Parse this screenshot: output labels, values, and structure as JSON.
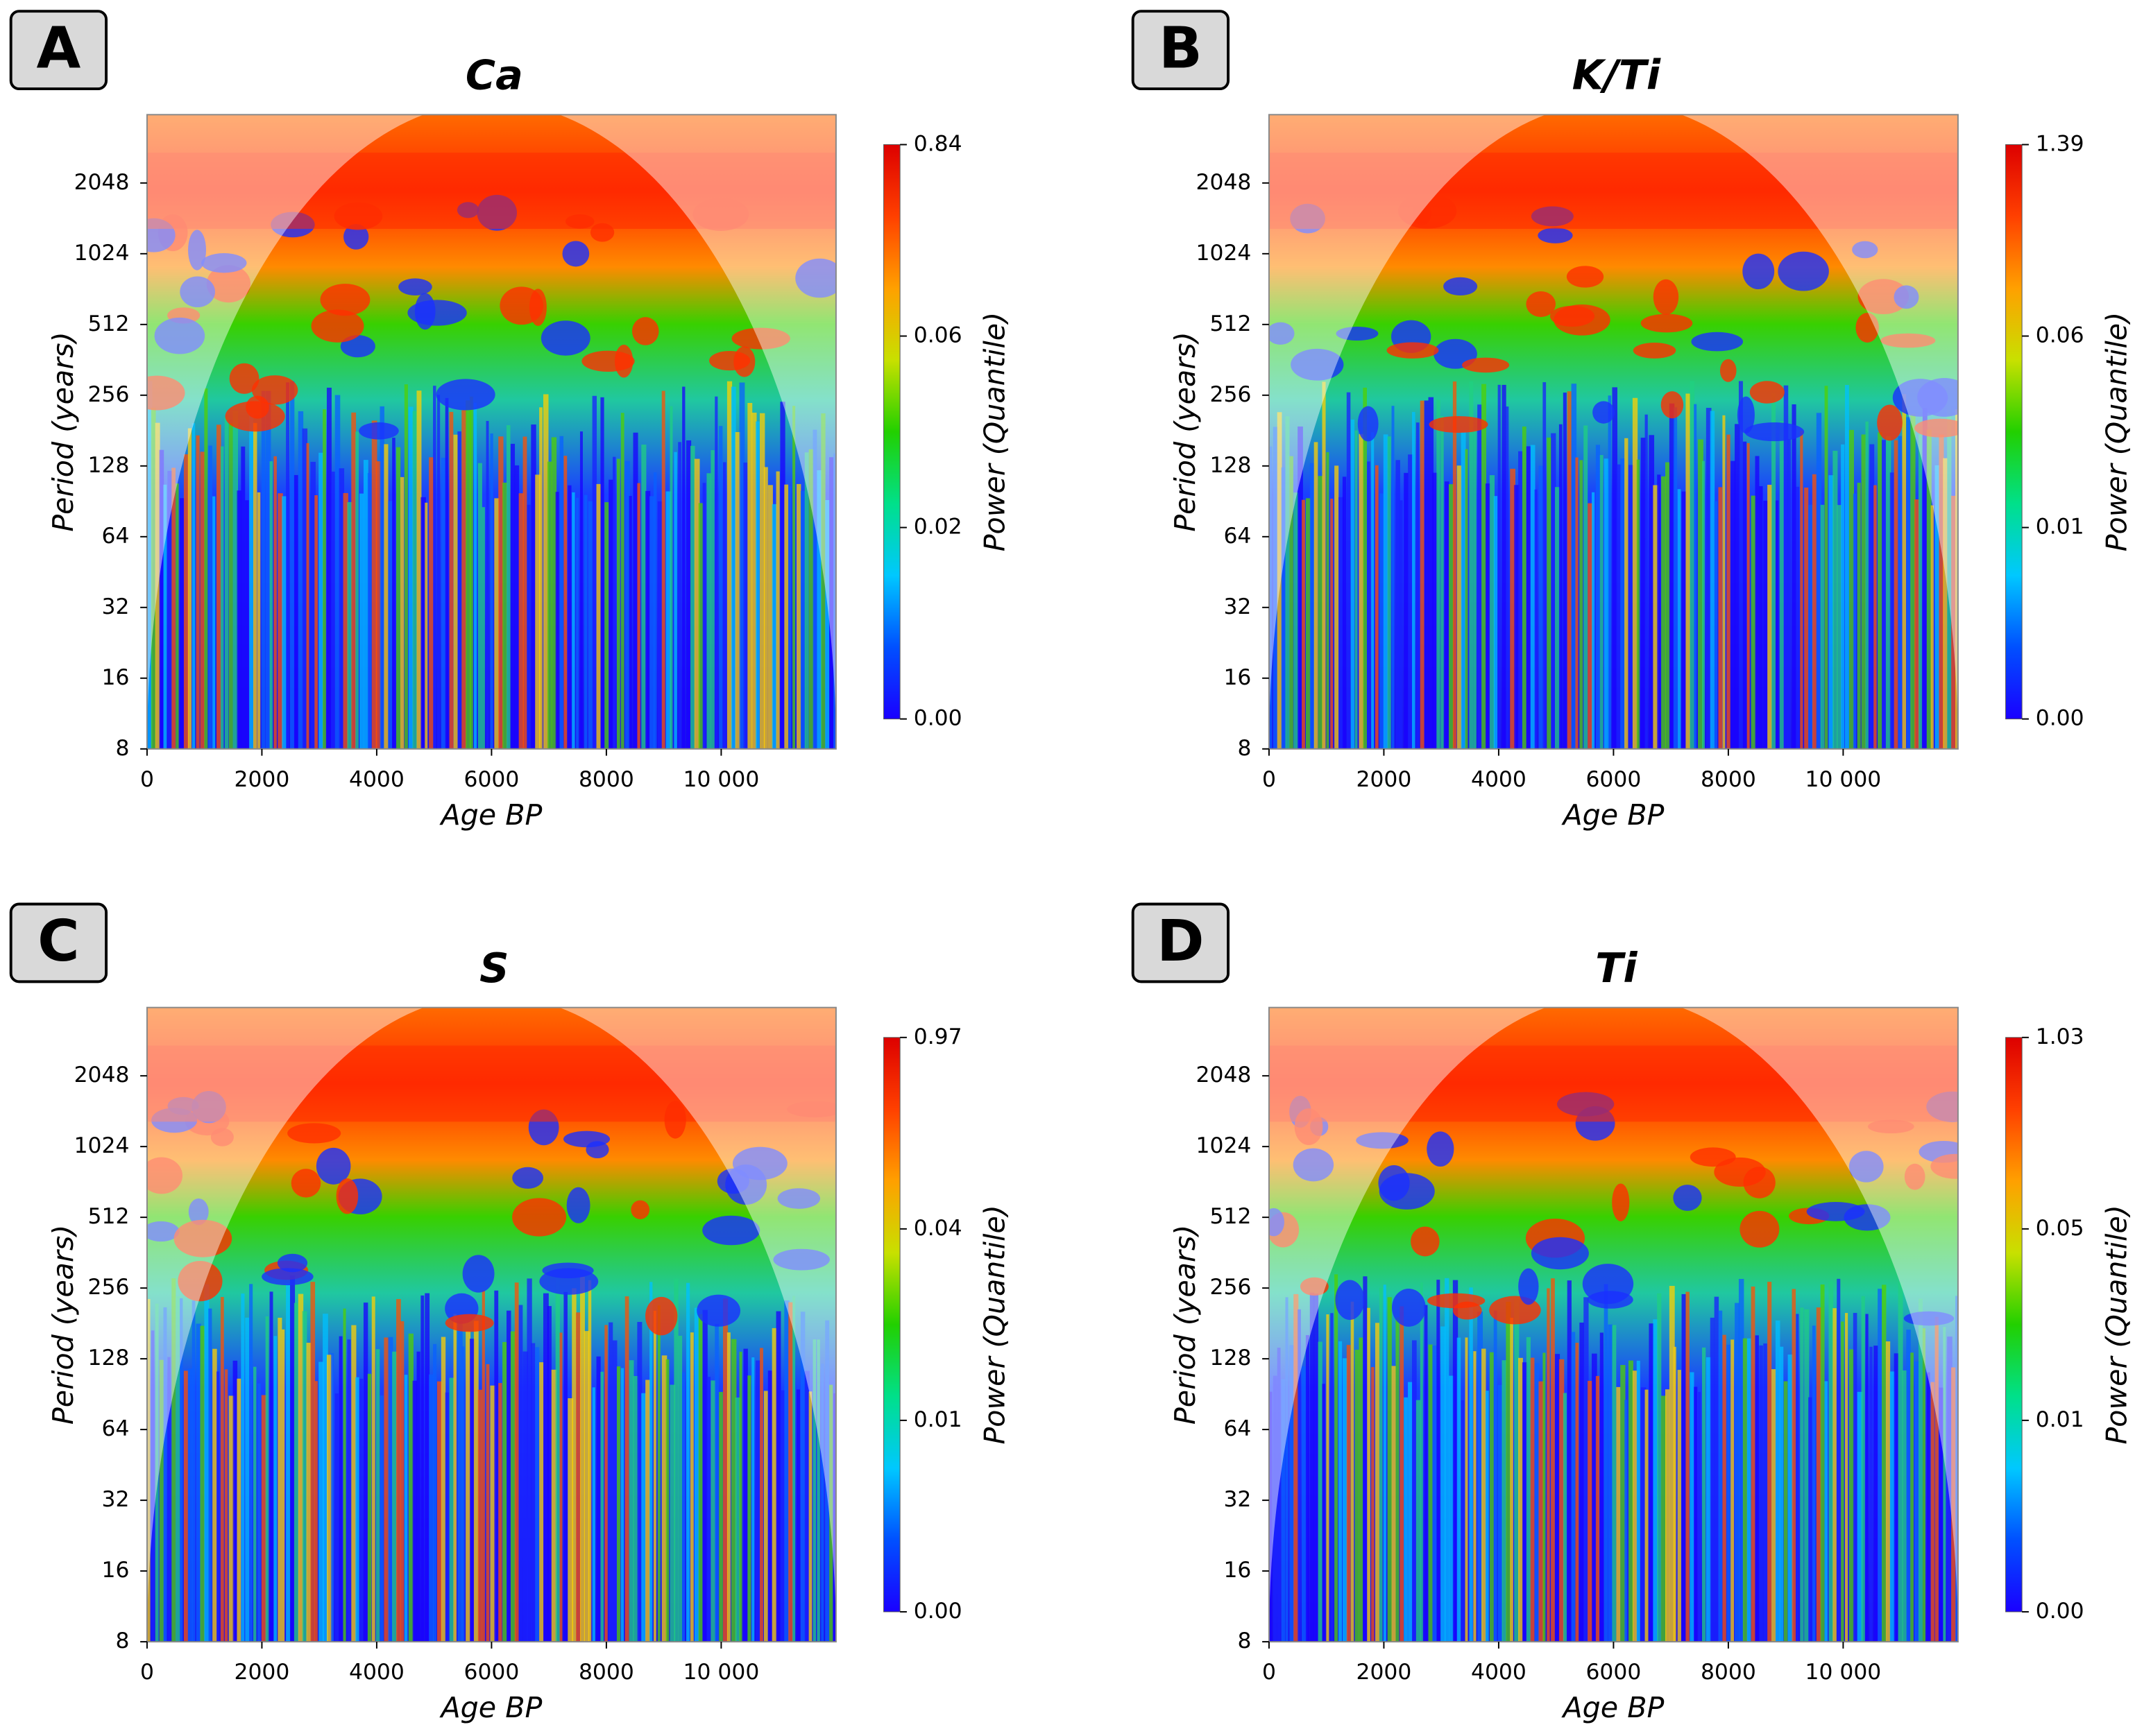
{
  "chart_data": [
    {
      "type": "heatmap",
      "panel_label": "A",
      "title": "Ca",
      "xlabel": "Age BP",
      "ylabel": "Period (years)",
      "colorbar_label": "Power (Quantile)",
      "xlim": [
        0,
        12000
      ],
      "xticks": [
        0,
        2000,
        4000,
        6000,
        8000,
        {
          "value": 10000,
          "label": "10 000"
        }
      ],
      "ylim": [
        8,
        4000
      ],
      "ylog": true,
      "yticks": [
        8,
        16,
        32,
        64,
        128,
        256,
        512,
        1024,
        2048
      ],
      "colorbar_scale": "quantile",
      "colorbar_ticks": [
        {
          "value": 0,
          "label": "0.00"
        },
        {
          "value": 0.02,
          "label": "0.02"
        },
        {
          "value": 0.06,
          "label": "0.06"
        },
        {
          "value": 0.84,
          "label": "0.84"
        }
      ],
      "colormap": [
        "#1a00ff",
        "#0050ff",
        "#00c8ff",
        "#00e08a",
        "#22d000",
        "#c8e000",
        "#ffa000",
        "#ff4000",
        "#dd0000"
      ]
    },
    {
      "type": "heatmap",
      "panel_label": "B",
      "title": "K/Ti",
      "xlabel": "Age BP",
      "ylabel": "Period (years)",
      "colorbar_label": "Power (Quantile)",
      "xlim": [
        0,
        12000
      ],
      "xticks": [
        0,
        2000,
        4000,
        6000,
        8000,
        {
          "value": 10000,
          "label": "10 000"
        }
      ],
      "ylim": [
        8,
        4000
      ],
      "ylog": true,
      "yticks": [
        8,
        16,
        32,
        64,
        128,
        256,
        512,
        1024,
        2048
      ],
      "colorbar_scale": "quantile",
      "colorbar_ticks": [
        {
          "value": 0,
          "label": "0.00"
        },
        {
          "value": 0.01,
          "label": "0.01"
        },
        {
          "value": 0.06,
          "label": "0.06"
        },
        {
          "value": 1.39,
          "label": "1.39"
        }
      ],
      "colormap": [
        "#1a00ff",
        "#0050ff",
        "#00c8ff",
        "#00e08a",
        "#22d000",
        "#c8e000",
        "#ffa000",
        "#ff4000",
        "#dd0000"
      ]
    },
    {
      "type": "heatmap",
      "panel_label": "C",
      "title": "S",
      "xlabel": "Age BP",
      "ylabel": "Period (years)",
      "colorbar_label": "Power (Quantile)",
      "xlim": [
        0,
        12000
      ],
      "xticks": [
        0,
        2000,
        4000,
        6000,
        8000,
        {
          "value": 10000,
          "label": "10 000"
        }
      ],
      "ylim": [
        8,
        4000
      ],
      "ylog": true,
      "yticks": [
        8,
        16,
        32,
        64,
        128,
        256,
        512,
        1024,
        2048
      ],
      "colorbar_scale": "quantile",
      "colorbar_ticks": [
        {
          "value": 0,
          "label": "0.00"
        },
        {
          "value": 0.01,
          "label": "0.01"
        },
        {
          "value": 0.04,
          "label": "0.04"
        },
        {
          "value": 0.97,
          "label": "0.97"
        }
      ],
      "colormap": [
        "#1a00ff",
        "#0050ff",
        "#00c8ff",
        "#00e08a",
        "#22d000",
        "#c8e000",
        "#ffa000",
        "#ff4000",
        "#dd0000"
      ]
    },
    {
      "type": "heatmap",
      "panel_label": "D",
      "title": "Ti",
      "xlabel": "Age BP",
      "ylabel": "Period (years)",
      "colorbar_label": "Power (Quantile)",
      "xlim": [
        0,
        12000
      ],
      "xticks": [
        0,
        2000,
        4000,
        6000,
        8000,
        {
          "value": 10000,
          "label": "10 000"
        }
      ],
      "ylim": [
        8,
        4000
      ],
      "ylog": true,
      "yticks": [
        8,
        16,
        32,
        64,
        128,
        256,
        512,
        1024,
        2048
      ],
      "colorbar_scale": "quantile",
      "colorbar_ticks": [
        {
          "value": 0,
          "label": "0.00"
        },
        {
          "value": 0.01,
          "label": "0.01"
        },
        {
          "value": 0.05,
          "label": "0.05"
        },
        {
          "value": 1.03,
          "label": "1.03"
        }
      ],
      "colormap": [
        "#1a00ff",
        "#0050ff",
        "#00c8ff",
        "#00e08a",
        "#22d000",
        "#c8e000",
        "#ffa000",
        "#ff4000",
        "#dd0000"
      ]
    }
  ]
}
